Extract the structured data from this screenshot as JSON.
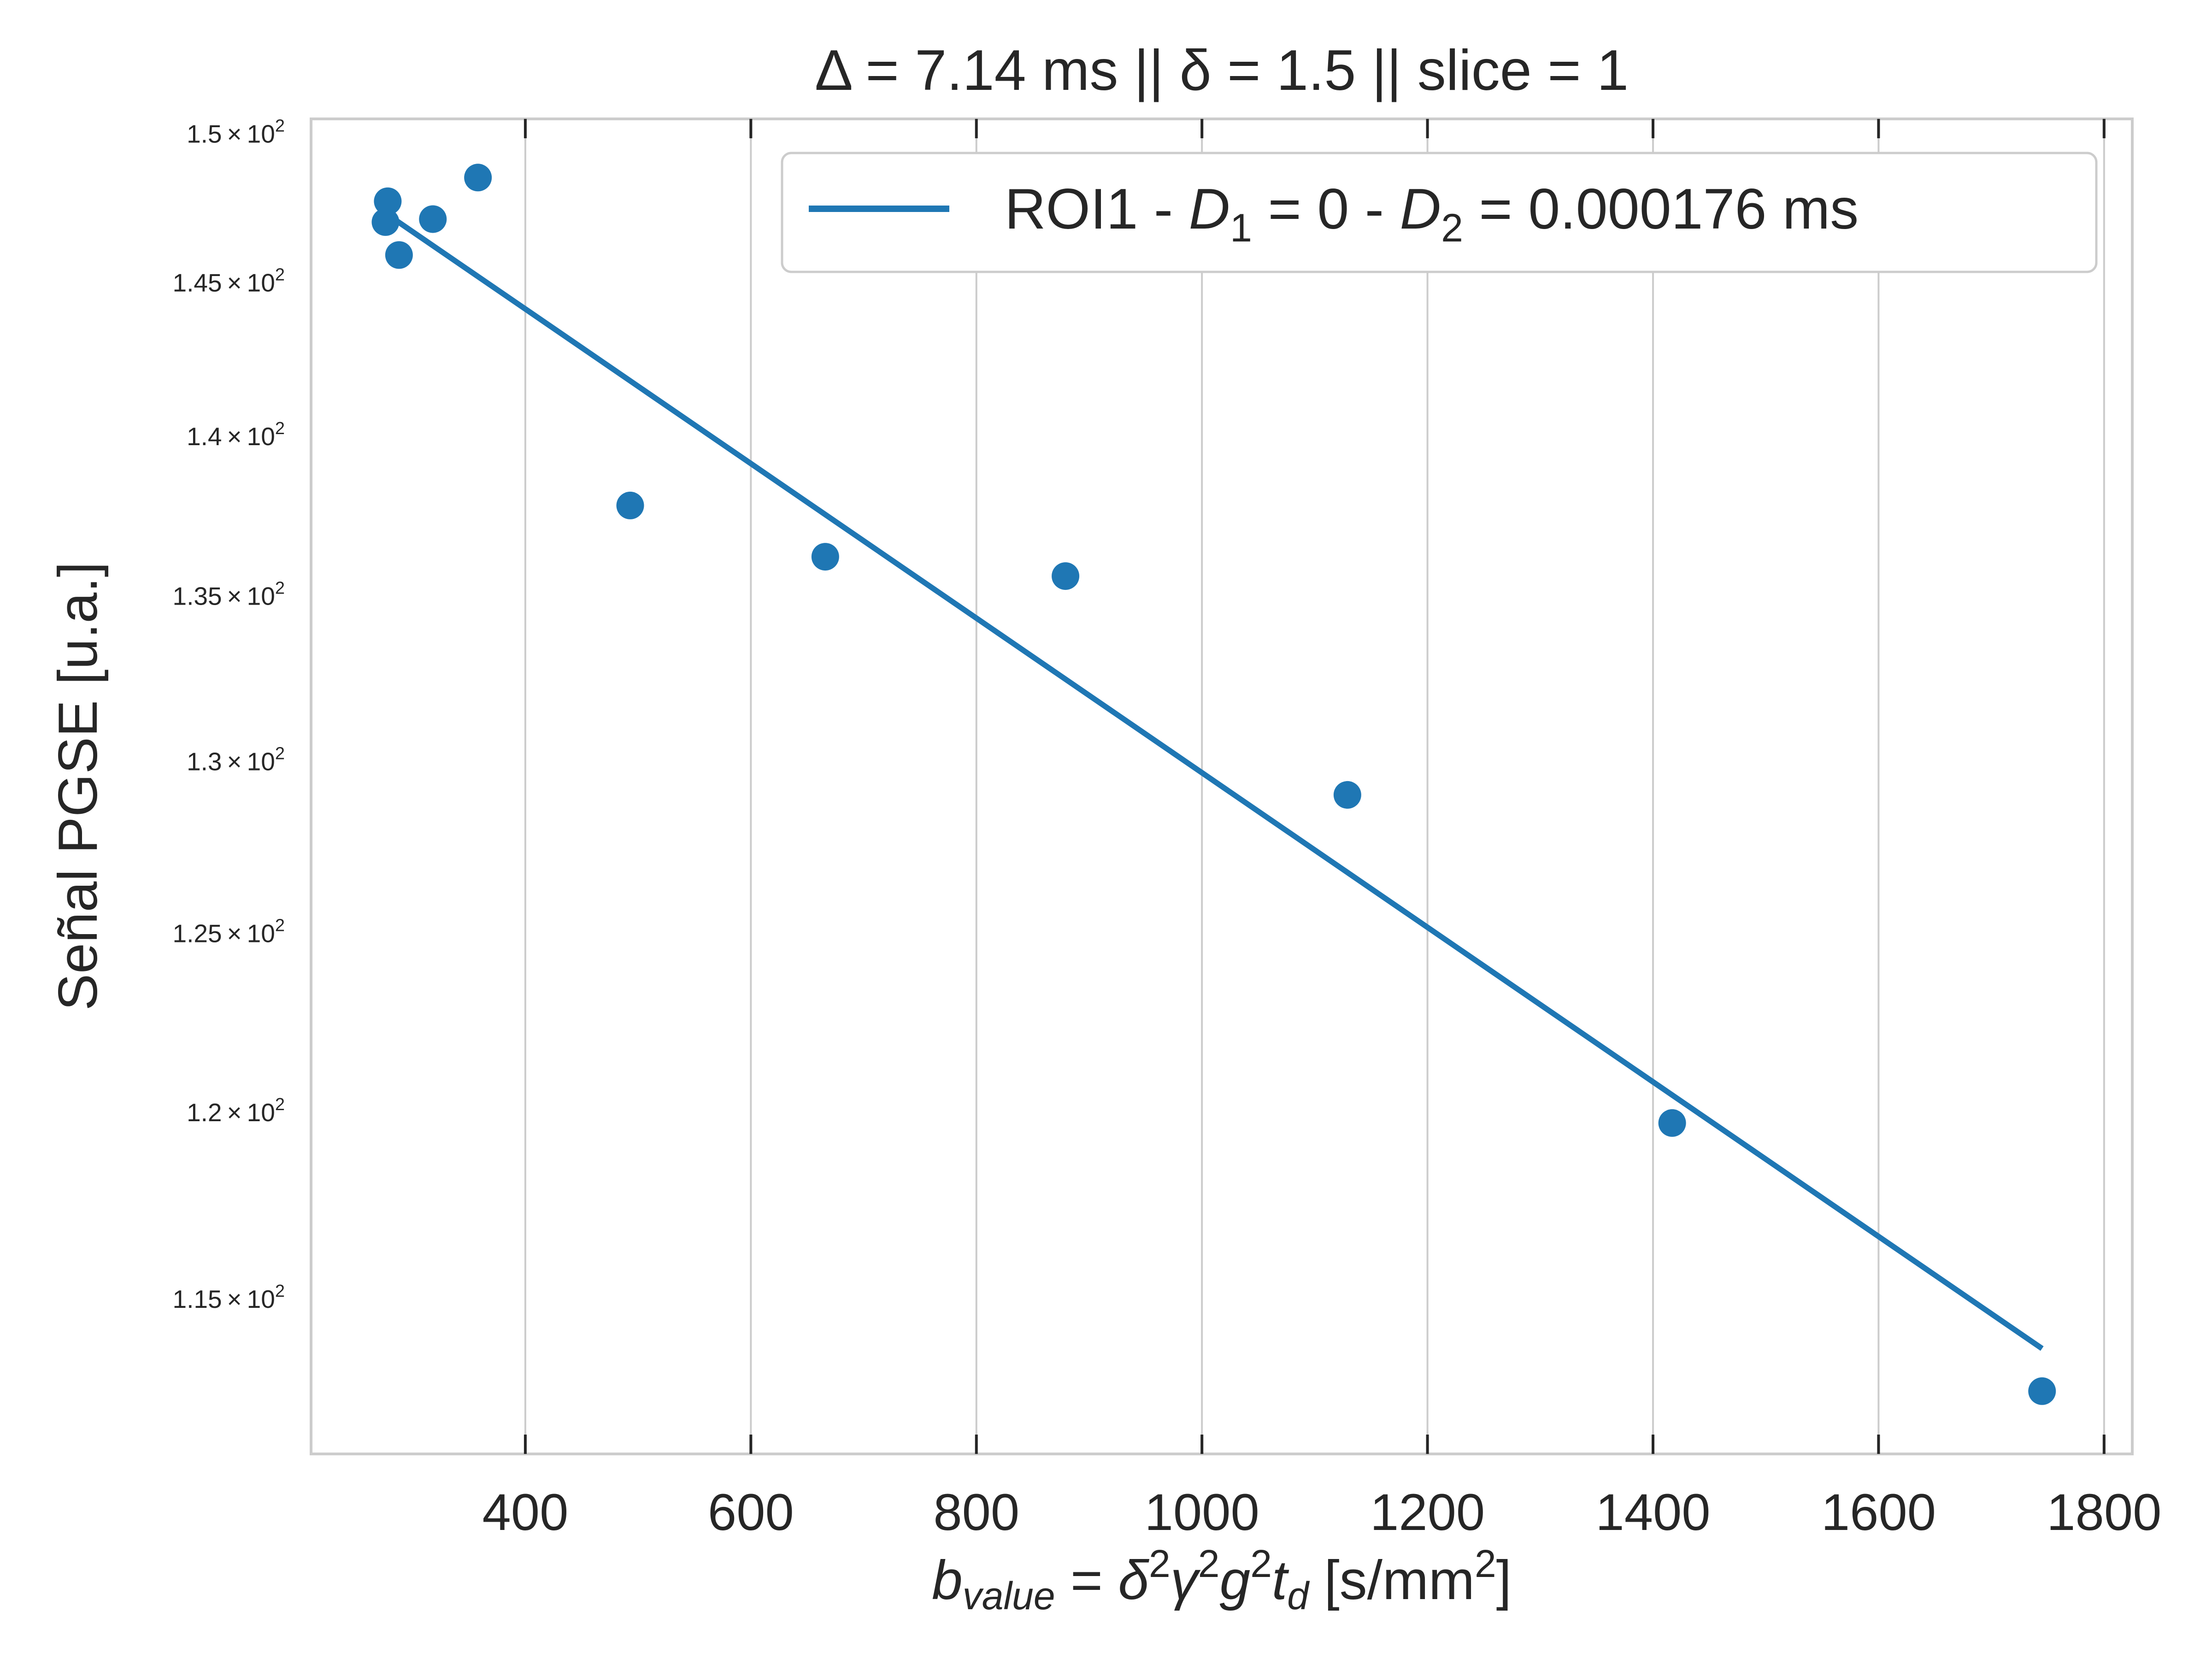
{
  "chart_data": {
    "type": "scatter",
    "title": "Δ = 7.14 ms  ||  δ = 1.5 || slice = 1",
    "xlabel": "b_value = δ²γ²g²t_d [s/mm²]",
    "ylabel": "Señal PGSE [u.a.]",
    "y_scale": "log",
    "xlim": [
      210,
      1825
    ],
    "ylim": [
      111.0,
      150.5
    ],
    "grid": "x",
    "legend_position": "top-right",
    "xticks": [
      400,
      600,
      800,
      1000,
      1200,
      1400,
      1600,
      1800
    ],
    "yticks": [
      {
        "value": 115,
        "mantissa": "1.15",
        "exp": "2"
      },
      {
        "value": 120,
        "mantissa": "1.2",
        "exp": "2"
      },
      {
        "value": 125,
        "mantissa": "1.25",
        "exp": "2"
      },
      {
        "value": 130,
        "mantissa": "1.3",
        "exp": "2"
      },
      {
        "value": 135,
        "mantissa": "1.35",
        "exp": "2"
      },
      {
        "value": 140,
        "mantissa": "1.4",
        "exp": "2"
      },
      {
        "value": 145,
        "mantissa": "1.45",
        "exp": "2"
      },
      {
        "value": 150,
        "mantissa": "1.5",
        "exp": "2"
      }
    ],
    "series": [
      {
        "kind": "scatter",
        "color": "#1f77b4",
        "points": [
          {
            "x": 278,
            "y": 147.7
          },
          {
            "x": 276,
            "y": 147.0
          },
          {
            "x": 288,
            "y": 145.9
          },
          {
            "x": 318,
            "y": 147.1
          },
          {
            "x": 358,
            "y": 148.5
          },
          {
            "x": 493,
            "y": 137.8
          },
          {
            "x": 666,
            "y": 136.2
          },
          {
            "x": 879,
            "y": 135.6
          },
          {
            "x": 1129,
            "y": 129.0
          },
          {
            "x": 1417,
            "y": 119.7
          },
          {
            "x": 1745,
            "y": 112.6
          }
        ]
      },
      {
        "kind": "line",
        "name": "ROI1 - D₁ = 0 - D₂ = 0.000176 ms",
        "color": "#1f77b4",
        "x": [
          276,
          1745
        ],
        "y": [
          147.3,
          113.7
        ]
      }
    ]
  }
}
